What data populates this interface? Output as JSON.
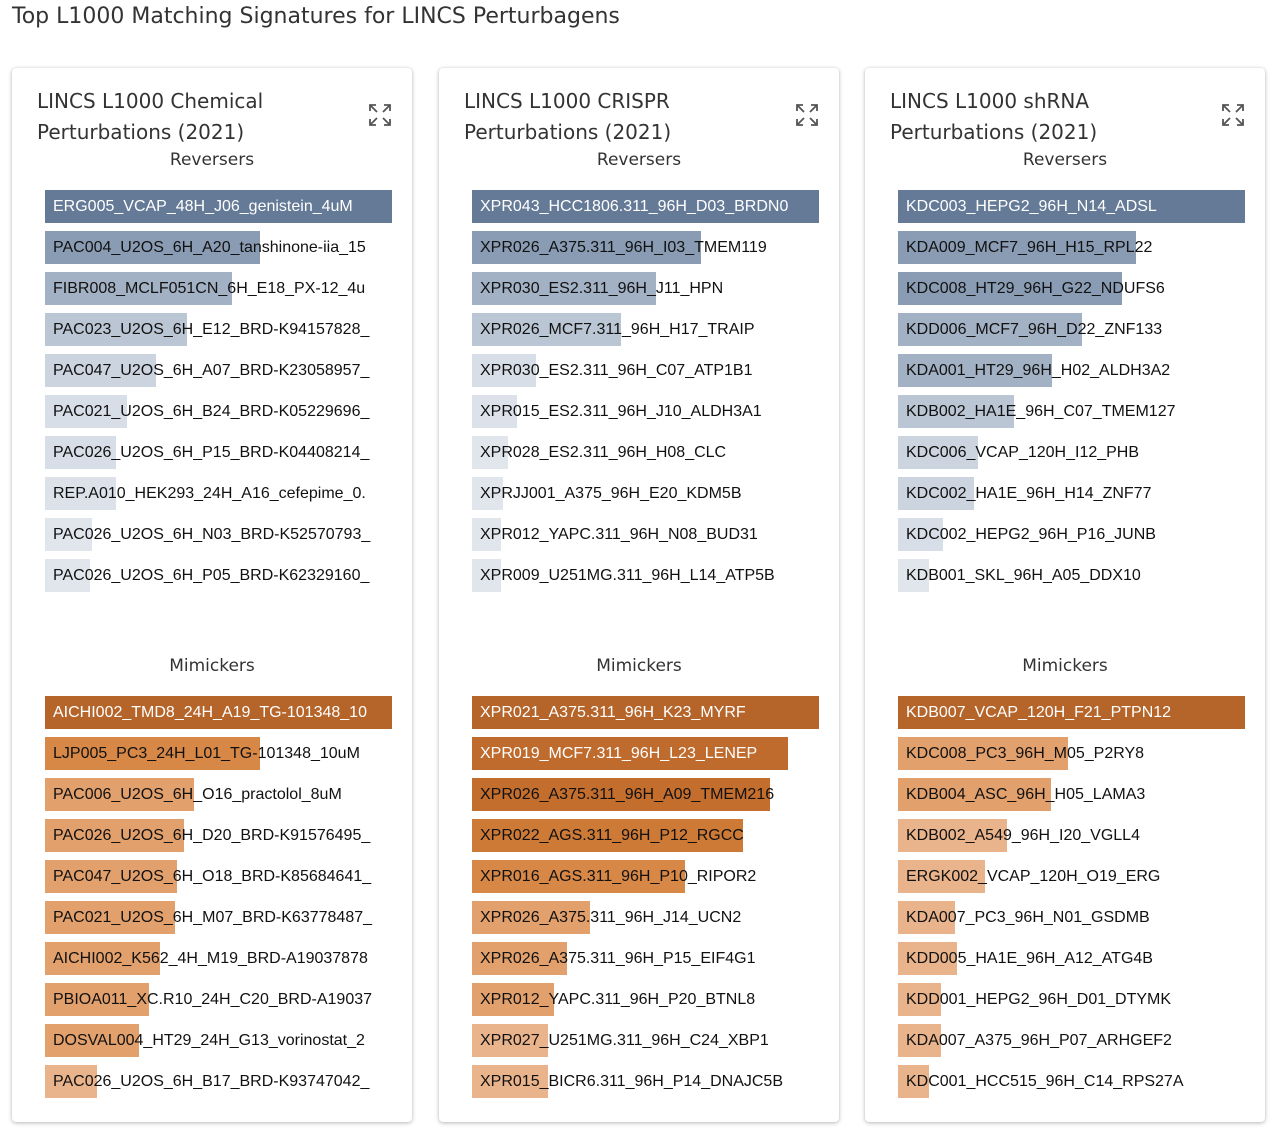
{
  "page": {
    "title": "Top L1000 Matching Signatures for LINCS Perturbagens"
  },
  "colors": {
    "reverser_shades": [
      "#647a96",
      "#8a9cb4",
      "#a3b1c5",
      "#bbc6d4",
      "#ccd4df",
      "#d8dee7",
      "#e1e6ec"
    ],
    "mimicker_shades": [
      "#b5652a",
      "#c46e2e",
      "#d78847",
      "#e2a06c",
      "#e9b48b"
    ]
  },
  "cards": [
    {
      "title": "LINCS L1000 Chemical Perturbations (2021)",
      "reversers_title": "Reversers",
      "mimickers_title": "Mimickers",
      "reversers": [
        {
          "label": "ERG005_VCAP_48H_J06_genistein_4uM",
          "score": 1.0,
          "color": "#647a96",
          "dark": true
        },
        {
          "label": "PAC004_U2OS_6H_A20_tanshinone-iia_15",
          "score": 0.62,
          "color": "#8a9cb4",
          "dark": false
        },
        {
          "label": "FIBR008_MCLF051CN_6H_E18_PX-12_4u",
          "score": 0.54,
          "color": "#a3b1c5",
          "dark": false
        },
        {
          "label": "PAC023_U2OS_6H_E12_BRD-K94157828_",
          "score": 0.41,
          "color": "#bbc6d4",
          "dark": false
        },
        {
          "label": "PAC047_U2OS_6H_A07_BRD-K23058957_",
          "score": 0.32,
          "color": "#ccd4df",
          "dark": false
        },
        {
          "label": "PAC021_U2OS_6H_B24_BRD-K05229696_",
          "score": 0.235,
          "color": "#d8dee7",
          "dark": false
        },
        {
          "label": "PAC026_U2OS_6H_P15_BRD-K04408214_",
          "score": 0.205,
          "color": "#d8dee7",
          "dark": false
        },
        {
          "label": "REP.A010_HEK293_24H_A16_cefepime_0.",
          "score": 0.205,
          "color": "#dde2ea",
          "dark": false
        },
        {
          "label": "PAC026_U2OS_6H_N03_BRD-K52570793_",
          "score": 0.135,
          "color": "#e1e6ec",
          "dark": false
        },
        {
          "label": "PAC026_U2OS_6H_P05_BRD-K62329160_",
          "score": 0.13,
          "color": "#e1e6ec",
          "dark": false
        }
      ],
      "mimickers": [
        {
          "label": "AICHI002_TMD8_24H_A19_TG-101348_10",
          "score": 1.0,
          "color": "#b5652a",
          "dark": true
        },
        {
          "label": "LJP005_PC3_24H_L01_TG-101348_10uM",
          "score": 0.62,
          "color": "#d78847",
          "dark": false
        },
        {
          "label": "PAC006_U2OS_6H_O16_practolol_8uM",
          "score": 0.43,
          "color": "#e2a06c",
          "dark": false
        },
        {
          "label": "PAC026_U2OS_6H_D20_BRD-K91576495_",
          "score": 0.4,
          "color": "#e2a06c",
          "dark": false
        },
        {
          "label": "PAC047_U2OS_6H_O18_BRD-K85684641_",
          "score": 0.38,
          "color": "#e2a06c",
          "dark": false
        },
        {
          "label": "PAC021_U2OS_6H_M07_BRD-K63778487_",
          "score": 0.375,
          "color": "#e2a06c",
          "dark": false
        },
        {
          "label": "AICHI002_K562_4H_M19_BRD-A19037878",
          "score": 0.33,
          "color": "#e2a06c",
          "dark": false
        },
        {
          "label": "PBIOA011_XC.R10_24H_C20_BRD-A19037",
          "score": 0.3,
          "color": "#e2a06c",
          "dark": false
        },
        {
          "label": "DOSVAL004_HT29_24H_G13_vorinostat_2",
          "score": 0.27,
          "color": "#e2a06c",
          "dark": false
        },
        {
          "label": "PAC026_U2OS_6H_B17_BRD-K93747042_",
          "score": 0.15,
          "color": "#e9b48b",
          "dark": false
        }
      ]
    },
    {
      "title": "LINCS L1000 CRISPR Perturbations (2021)",
      "reversers_title": "Reversers",
      "mimickers_title": "Mimickers",
      "reversers": [
        {
          "label": "XPR043_HCC1806.311_96H_D03_BRDN0",
          "score": 1.0,
          "color": "#647a96",
          "dark": true
        },
        {
          "label": "XPR026_A375.311_96H_I03_TMEM119",
          "score": 0.66,
          "color": "#8a9cb4",
          "dark": false
        },
        {
          "label": "XPR030_ES2.311_96H_J11_HPN",
          "score": 0.53,
          "color": "#a3b1c5",
          "dark": false
        },
        {
          "label": "XPR026_MCF7.311_96H_H17_TRAIP",
          "score": 0.43,
          "color": "#bbc6d4",
          "dark": false
        },
        {
          "label": "XPR030_ES2.311_96H_C07_ATP1B1",
          "score": 0.185,
          "color": "#d8dee7",
          "dark": false
        },
        {
          "label": "XPR015_ES2.311_96H_J10_ALDH3A1",
          "score": 0.13,
          "color": "#dde2ea",
          "dark": false
        },
        {
          "label": "XPR028_ES2.311_96H_H08_CLC",
          "score": 0.105,
          "color": "#e1e6ec",
          "dark": false
        },
        {
          "label": "XPRJJ001_A375_96H_E20_KDM5B",
          "score": 0.09,
          "color": "#e1e6ec",
          "dark": false
        },
        {
          "label": "XPR012_YAPC.311_96H_N08_BUD31",
          "score": 0.085,
          "color": "#e1e6ec",
          "dark": false
        },
        {
          "label": "XPR009_U251MG.311_96H_L14_ATP5B",
          "score": 0.085,
          "color": "#e1e6ec",
          "dark": false
        }
      ],
      "mimickers": [
        {
          "label": "XPR021_A375.311_96H_K23_MYRF",
          "score": 1.0,
          "color": "#b5652a",
          "dark": true
        },
        {
          "label": "XPR019_MCF7.311_96H_L23_LENEP",
          "score": 0.91,
          "color": "#bf6b2d",
          "dark": true
        },
        {
          "label": "XPR026_A375.311_96H_A09_TMEM216",
          "score": 0.86,
          "color": "#c46e2e",
          "dark": false
        },
        {
          "label": "XPR022_AGS.311_96H_P12_RGCC",
          "score": 0.78,
          "color": "#ce7a37",
          "dark": false
        },
        {
          "label": "XPR016_AGS.311_96H_P10_RIPOR2",
          "score": 0.615,
          "color": "#d78847",
          "dark": false
        },
        {
          "label": "XPR026_A375.311_96H_J14_UCN2",
          "score": 0.34,
          "color": "#e2a06c",
          "dark": false
        },
        {
          "label": "XPR026_A375.311_96H_P15_EIF4G1",
          "score": 0.275,
          "color": "#e2a06c",
          "dark": false
        },
        {
          "label": "XPR012_YAPC.311_96H_P20_BTNL8",
          "score": 0.235,
          "color": "#e2a06c",
          "dark": false
        },
        {
          "label": "XPR027_U251MG.311_96H_C24_XBP1",
          "score": 0.22,
          "color": "#e9b48b",
          "dark": false
        },
        {
          "label": "XPR015_BICR6.311_96H_P14_DNAJC5B",
          "score": 0.22,
          "color": "#e9b48b",
          "dark": false
        }
      ]
    },
    {
      "title": "LINCS L1000 shRNA Perturbations (2021)",
      "reversers_title": "Reversers",
      "mimickers_title": "Mimickers",
      "reversers": [
        {
          "label": "KDC003_HEPG2_96H_N14_ADSL",
          "score": 1.0,
          "color": "#647a96",
          "dark": true
        },
        {
          "label": "KDA009_MCF7_96H_H15_RPL22",
          "score": 0.685,
          "color": "#8a9cb4",
          "dark": false
        },
        {
          "label": "KDC008_HT29_96H_G22_NDUFS6",
          "score": 0.645,
          "color": "#8a9cb4",
          "dark": false
        },
        {
          "label": "KDD006_MCF7_96H_D22_ZNF133",
          "score": 0.53,
          "color": "#a3b1c5",
          "dark": false
        },
        {
          "label": "KDA001_HT29_96H_H02_ALDH3A2",
          "score": 0.445,
          "color": "#a3b1c5",
          "dark": false
        },
        {
          "label": "KDB002_HA1E_96H_C07_TMEM127",
          "score": 0.335,
          "color": "#bbc6d4",
          "dark": false
        },
        {
          "label": "KDC006_VCAP_120H_I12_PHB",
          "score": 0.23,
          "color": "#ccd4df",
          "dark": false
        },
        {
          "label": "KDC002_HA1E_96H_H14_ZNF77",
          "score": 0.22,
          "color": "#ccd4df",
          "dark": false
        },
        {
          "label": "KDC002_HEPG2_96H_P16_JUNB",
          "score": 0.13,
          "color": "#d8dee7",
          "dark": false
        },
        {
          "label": "KDB001_SKL_96H_A05_DDX10",
          "score": 0.09,
          "color": "#e1e6ec",
          "dark": false
        }
      ],
      "mimickers": [
        {
          "label": "KDB007_VCAP_120H_F21_PTPN12",
          "score": 1.0,
          "color": "#b5652a",
          "dark": true
        },
        {
          "label": "KDC008_PC3_96H_M05_P2RY8",
          "score": 0.49,
          "color": "#e2a06c",
          "dark": false
        },
        {
          "label": "KDB004_ASC_96H_H05_LAMA3",
          "score": 0.44,
          "color": "#e2a06c",
          "dark": false
        },
        {
          "label": "KDB002_A549_96H_I20_VGLL4",
          "score": 0.315,
          "color": "#e9b48b",
          "dark": false
        },
        {
          "label": "ERGK002_VCAP_120H_O19_ERG",
          "score": 0.25,
          "color": "#e9b48b",
          "dark": false
        },
        {
          "label": "KDA007_PC3_96H_N01_GSDMB",
          "score": 0.165,
          "color": "#e9b48b",
          "dark": false
        },
        {
          "label": "KDD005_HA1E_96H_A12_ATG4B",
          "score": 0.17,
          "color": "#e9b48b",
          "dark": false
        },
        {
          "label": "KDD001_HEPG2_96H_D01_DTYMK",
          "score": 0.125,
          "color": "#e9b48b",
          "dark": false
        },
        {
          "label": "KDA007_A375_96H_P07_ARHGEF2",
          "score": 0.125,
          "color": "#e9b48b",
          "dark": false
        },
        {
          "label": "KDC001_HCC515_96H_C14_RPS27A",
          "score": 0.09,
          "color": "#e9b48b",
          "dark": false
        }
      ]
    }
  ]
}
